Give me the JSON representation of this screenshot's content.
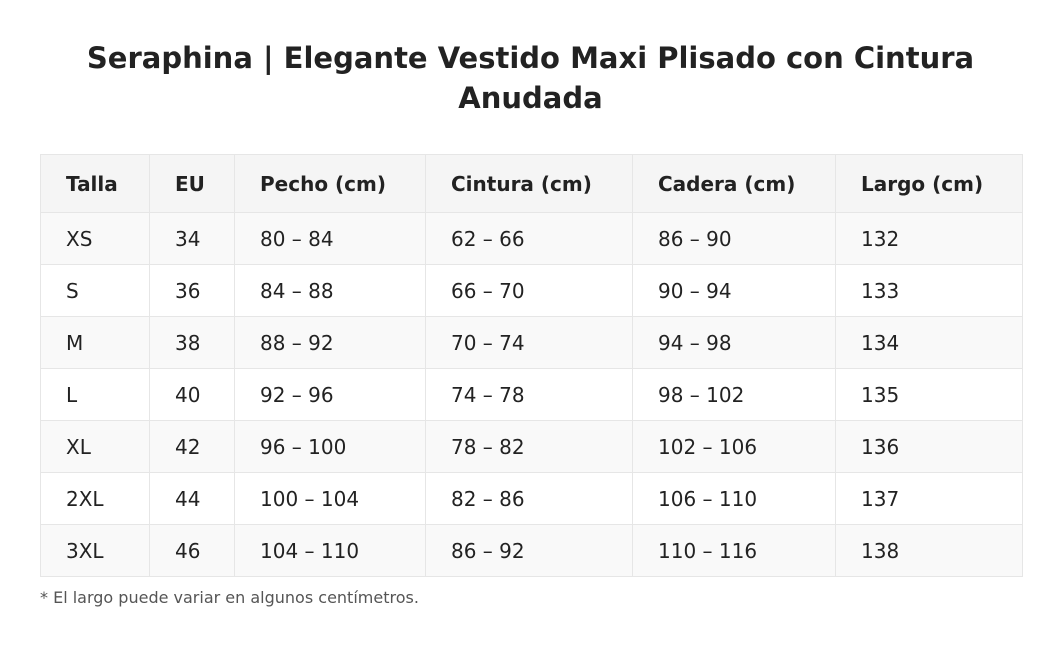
{
  "header": {
    "title": "Seraphina | Elegante Vestido Maxi Plisado con Cintura Anudada"
  },
  "table": {
    "headers": [
      "Talla",
      "EU",
      "Pecho (cm)",
      "Cintura (cm)",
      "Cadera (cm)",
      "Largo (cm)"
    ],
    "rows": [
      [
        "XS",
        "34",
        "80 – 84",
        "62 – 66",
        "86 – 90",
        "132"
      ],
      [
        "S",
        "36",
        "84 – 88",
        "66 – 70",
        "90 – 94",
        "133"
      ],
      [
        "M",
        "38",
        "88 – 92",
        "70 – 74",
        "94 – 98",
        "134"
      ],
      [
        "L",
        "40",
        "92 – 96",
        "74 – 78",
        "98 – 102",
        "135"
      ],
      [
        "XL",
        "42",
        "96 – 100",
        "78 – 82",
        "102 – 106",
        "136"
      ],
      [
        "2XL",
        "44",
        "100 – 104",
        "82 – 86",
        "106 – 110",
        "137"
      ],
      [
        "3XL",
        "46",
        "104 – 110",
        "86 – 92",
        "110 – 116",
        "138"
      ]
    ]
  },
  "note": "* El largo puede variar en algunos centímetros."
}
